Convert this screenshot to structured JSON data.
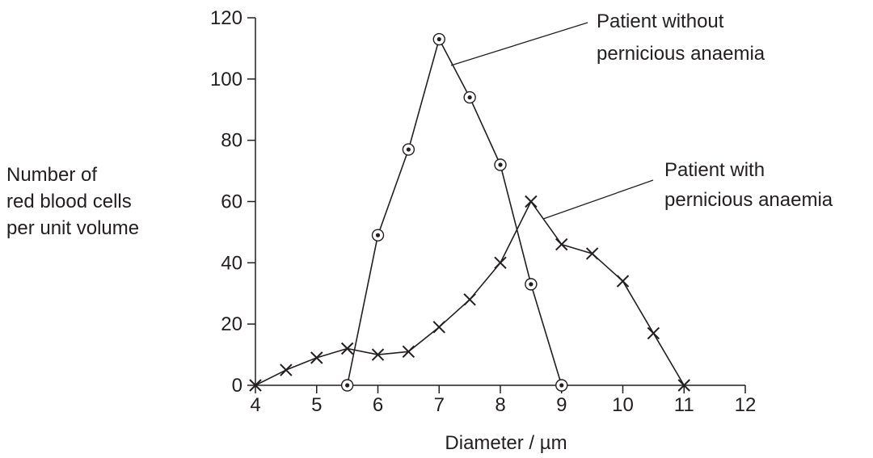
{
  "chart_data": {
    "type": "line",
    "title": "",
    "xlabel": "Diameter / µm",
    "ylabel_lines": [
      "Number of",
      "red blood cells",
      "per unit volume"
    ],
    "xlim": [
      4,
      12
    ],
    "ylim": [
      0,
      120
    ],
    "xticks": [
      4,
      5,
      6,
      7,
      8,
      9,
      10,
      11,
      12
    ],
    "yticks": [
      0,
      20,
      40,
      60,
      80,
      100,
      120
    ],
    "grid": false,
    "legend": "none",
    "series": [
      {
        "name": "Patient without pernicious anaemia",
        "label_lines": [
          "Patient without",
          "pernicious anaemia"
        ],
        "marker": "circled-dot",
        "x": [
          5.5,
          6,
          6.5,
          7,
          7.5,
          8,
          8.5,
          9
        ],
        "y": [
          0,
          49,
          77,
          113,
          94,
          72,
          33,
          0
        ]
      },
      {
        "name": "Patient with pernicious anaemia",
        "label_lines": [
          "Patient with",
          "pernicious anaemia"
        ],
        "marker": "cross",
        "x": [
          4,
          4.5,
          5,
          5.5,
          6,
          6.5,
          7,
          7.5,
          8,
          8.5,
          9,
          9.5,
          10,
          10.5,
          11
        ],
        "y": [
          0,
          5,
          9,
          12,
          10,
          11,
          19,
          28,
          40,
          60,
          46,
          43,
          34,
          17,
          0
        ]
      }
    ]
  }
}
